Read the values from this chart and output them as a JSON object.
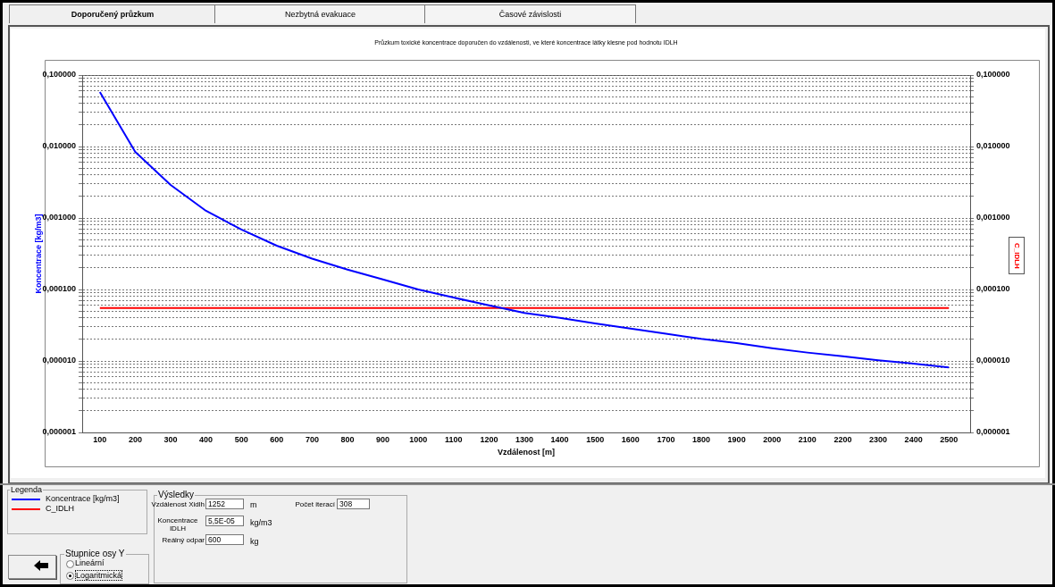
{
  "chart_data": {
    "type": "line",
    "title": "Průzkum toxické koncentrace doporučen do vzdálenosti, ve které koncentrace látky klesne pod hodnotu IDLH",
    "xlabel": "Vzdálenost [m]",
    "ylabel": "Koncentrace [kg/m3]",
    "legend_title": "Legenda",
    "legend": "bottom left",
    "log": "y",
    "grid": "y",
    "line_style": "solid",
    "marker": "none",
    "xlim": [
      50,
      2560
    ],
    "xticks": [
      100,
      200,
      300,
      400,
      500,
      600,
      700,
      800,
      900,
      1000,
      1100,
      1200,
      1300,
      1400,
      1500,
      1600,
      1700,
      1800,
      1900,
      2000,
      2100,
      2200,
      2300,
      2400,
      2500
    ],
    "ylim": [
      1e-06,
      0.1
    ],
    "yticks": [
      {
        "value": 1e-06,
        "label": "0,000001"
      },
      {
        "value": 2e-06,
        "label": null
      },
      {
        "value": 3e-06,
        "label": null
      },
      {
        "value": 4e-06,
        "label": null
      },
      {
        "value": 5e-06,
        "label": null
      },
      {
        "value": 6e-06,
        "label": null
      },
      {
        "value": 7e-06,
        "label": null
      },
      {
        "value": 8e-06,
        "label": null
      },
      {
        "value": 9e-06,
        "label": null
      },
      {
        "value": 1e-05,
        "label": "0,000010"
      },
      {
        "value": 2e-05,
        "label": null
      },
      {
        "value": 3e-05,
        "label": null
      },
      {
        "value": 4e-05,
        "label": null
      },
      {
        "value": 5e-05,
        "label": null
      },
      {
        "value": 6e-05,
        "label": null
      },
      {
        "value": 7e-05,
        "label": null
      },
      {
        "value": 8e-05,
        "label": null
      },
      {
        "value": 9e-05,
        "label": null
      },
      {
        "value": 0.0001,
        "label": "0,000100"
      },
      {
        "value": 0.0002,
        "label": null
      },
      {
        "value": 0.0003,
        "label": null
      },
      {
        "value": 0.0004,
        "label": null
      },
      {
        "value": 0.0005,
        "label": null
      },
      {
        "value": 0.0006,
        "label": null
      },
      {
        "value": 0.0007,
        "label": null
      },
      {
        "value": 0.0008,
        "label": null
      },
      {
        "value": 0.0009,
        "label": null
      },
      {
        "value": 0.001,
        "label": "0,001000"
      },
      {
        "value": 0.002,
        "label": null
      },
      {
        "value": 0.003,
        "label": null
      },
      {
        "value": 0.004,
        "label": null
      },
      {
        "value": 0.005,
        "label": null
      },
      {
        "value": 0.006,
        "label": null
      },
      {
        "value": 0.007,
        "label": null
      },
      {
        "value": 0.008,
        "label": null
      },
      {
        "value": 0.009,
        "label": null
      },
      {
        "value": 0.01,
        "label": "0,010000"
      },
      {
        "value": 0.02,
        "label": null
      },
      {
        "value": 0.03,
        "label": null
      },
      {
        "value": 0.04,
        "label": null
      },
      {
        "value": 0.05,
        "label": null
      },
      {
        "value": 0.06,
        "label": null
      },
      {
        "value": 0.07,
        "label": null
      },
      {
        "value": 0.08,
        "label": null
      },
      {
        "value": 0.09,
        "label": null
      },
      {
        "value": 0.1,
        "label": "0,100000"
      }
    ],
    "series": [
      {
        "name": "Koncentrace [kg/m3]",
        "color": "#0000ff",
        "x": [
          100,
          200,
          300,
          400,
          500,
          600,
          700,
          800,
          900,
          1000,
          1100,
          1200,
          1300,
          1400,
          1500,
          1600,
          1700,
          1800,
          1900,
          2000,
          2100,
          2200,
          2300,
          2400,
          2500
        ],
        "values": [
          0.058,
          0.0084,
          0.0029,
          0.00126,
          0.00069,
          0.00041,
          0.00027,
          0.00019,
          0.000138,
          0.0001,
          7.7e-05,
          6e-05,
          4.7e-05,
          4e-05,
          3.35e-05,
          2.83e-05,
          2.4e-05,
          2.04e-05,
          1.78e-05,
          1.51e-05,
          1.31e-05,
          1.16e-05,
          1.02e-05,
          9.2e-06,
          8.1e-06
        ]
      },
      {
        "name": "C_IDLH",
        "color": "#ff0000",
        "x": [
          100,
          2500
        ],
        "values": [
          5.5e-05,
          5.5e-05
        ]
      }
    ],
    "annotations": [
      "Doporučený průzkum",
      "Nezbytná evakuace",
      "Časové závislosti",
      "Výsledky",
      "Vzdálenost Xidlh",
      "1252",
      "m",
      "Počet iterací",
      "308",
      "Koncentrace IDLH",
      "5,5E-05",
      "kg/m3",
      "Reálný odpar",
      "600",
      "kg",
      "Stupnice osy Y",
      "Lineární",
      "Logaritmická",
      "C_IDLH"
    ]
  }
}
